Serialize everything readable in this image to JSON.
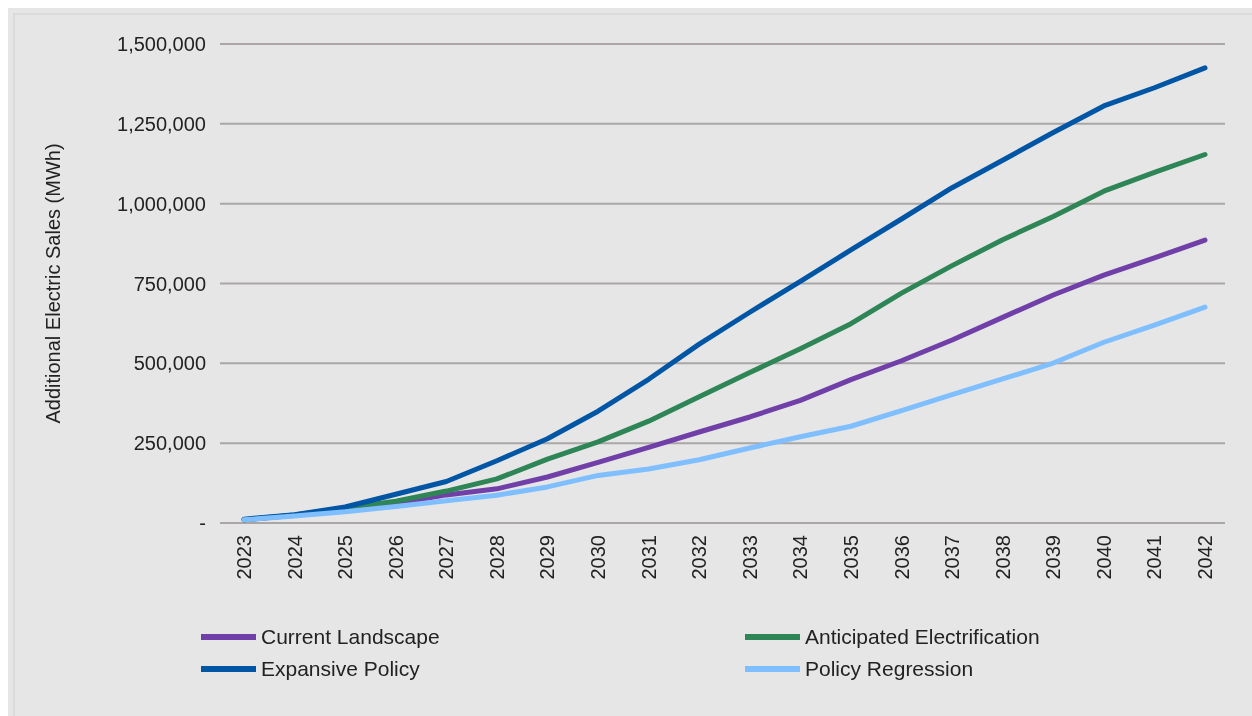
{
  "chart_data": {
    "type": "line",
    "ylabel": "Additional Electric Sales (MWh)",
    "categories": [
      "2023",
      "2024",
      "2025",
      "2026",
      "2027",
      "2028",
      "2029",
      "2030",
      "2031",
      "2032",
      "2033",
      "2034",
      "2035",
      "2036",
      "2037",
      "2038",
      "2039",
      "2040",
      "2041",
      "2042"
    ],
    "series": [
      {
        "name": "Current Landscape",
        "color": "#7040a8",
        "values": [
          10000,
          24000,
          45000,
          60000,
          88000,
          107000,
          144000,
          190000,
          237000,
          285000,
          332000,
          384000,
          449000,
          508000,
          573000,
          644000,
          714000,
          776000,
          830000,
          886000
        ]
      },
      {
        "name": "Anticipated Electrification",
        "color": "#2e8555",
        "values": [
          10000,
          25000,
          47000,
          68000,
          100000,
          138000,
          200000,
          254000,
          319000,
          395000,
          471000,
          546000,
          624000,
          720000,
          806000,
          887000,
          960000,
          1039000,
          1098000,
          1154000
        ]
      },
      {
        "name": "Expansive Policy",
        "color": "#0055a5",
        "values": [
          12000,
          26000,
          50000,
          90000,
          130000,
          195000,
          264000,
          350000,
          450000,
          560000,
          660000,
          757000,
          855000,
          952000,
          1050000,
          1136000,
          1223000,
          1306000,
          1363000,
          1425000
        ]
      },
      {
        "name": "Policy Regression",
        "color": "#7fbfff",
        "values": [
          10000,
          22000,
          35000,
          52000,
          70000,
          87000,
          113000,
          149000,
          169000,
          198000,
          235000,
          270000,
          303000,
          352000,
          402000,
          451000,
          501000,
          566000,
          620000,
          676000
        ]
      }
    ],
    "ylim": [
      0,
      1500000
    ],
    "yticks": [
      {
        "value": 0,
        "label": "-"
      },
      {
        "value": 250000,
        "label": "250,000"
      },
      {
        "value": 500000,
        "label": "500,000"
      },
      {
        "value": 750000,
        "label": "750,000"
      },
      {
        "value": 1000000,
        "label": "1,000,000"
      },
      {
        "value": 1250000,
        "label": "1,250,000"
      },
      {
        "value": 1500000,
        "label": "1,500,000"
      }
    ],
    "grid": "y",
    "legend": "bottom",
    "line_style": "solid"
  }
}
